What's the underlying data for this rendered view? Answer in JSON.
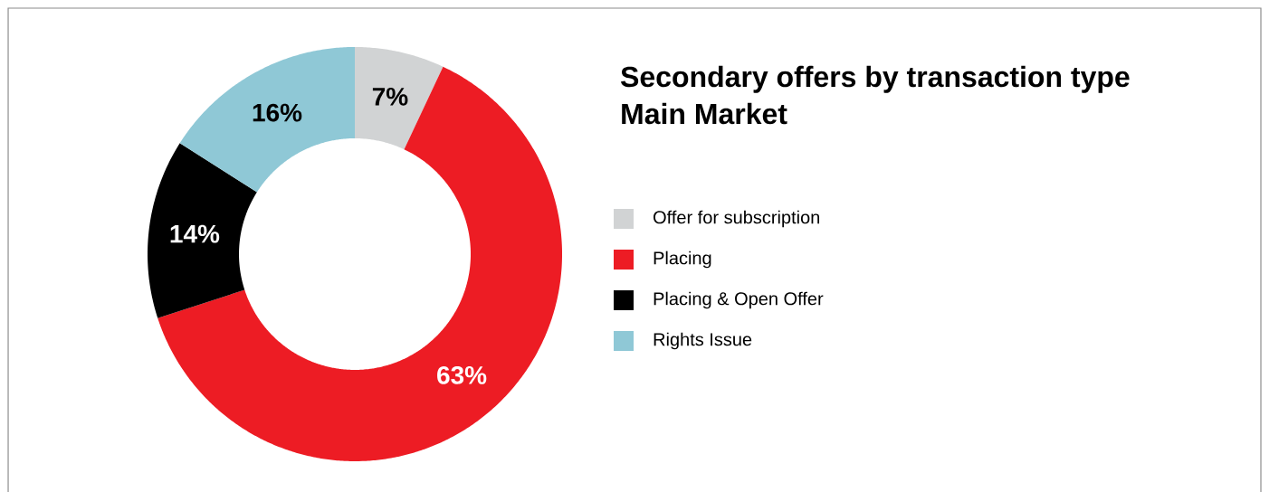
{
  "chart_data": {
    "type": "donut",
    "title": "Secondary offers by transaction type",
    "subtitle": "Main Market",
    "categories": [
      "Offer for subscription",
      "Placing",
      "Placing & Open Offer",
      "Rights Issue"
    ],
    "values": [
      7,
      63,
      14,
      16
    ],
    "colors": [
      "#d1d3d4",
      "#ed1c24",
      "#000000",
      "#8fc8d6"
    ],
    "value_labels": [
      "7%",
      "63%",
      "14%",
      "16%"
    ],
    "legend": "right"
  }
}
